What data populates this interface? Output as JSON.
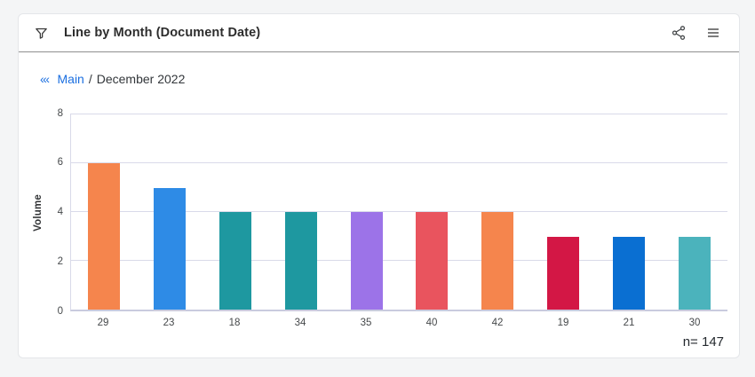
{
  "header": {
    "title": "Line by Month (Document Date)"
  },
  "breadcrumb": {
    "back_glyph": "‹‹‹",
    "root_label": "Main",
    "separator": "/",
    "current_label": "December 2022"
  },
  "footer": {
    "n_label": "n= 147"
  },
  "colors": {
    "link_blue": "#1B6FE0",
    "gridline": "#D9DAE9",
    "axis_line": "#C9CBDE",
    "header_divider": "#8F8F8F",
    "page_background": "#F4F5F6",
    "card_background": "#FFFFFF",
    "tick_text": "#45484A",
    "title_text": "#2D2D2D"
  },
  "chart_data": {
    "type": "bar",
    "title": "Line by Month (Document Date)",
    "categories": [
      "29",
      "23",
      "18",
      "34",
      "35",
      "40",
      "42",
      "19",
      "21",
      "30"
    ],
    "values": [
      6,
      5,
      4,
      4,
      4,
      4,
      4,
      3,
      3,
      3
    ],
    "bar_colors": [
      "#F5854D",
      "#2E8BE6",
      "#1E98A0",
      "#1E98A0",
      "#9C73E8",
      "#E9545E",
      "#F5854D",
      "#D31745",
      "#0A6FD2",
      "#4BB3BC"
    ],
    "xlabel": "",
    "ylabel": "Volume",
    "ylim": [
      0,
      8
    ],
    "yticks": [
      0,
      2,
      4,
      6,
      8
    ],
    "grid": true,
    "legend_position": "none",
    "n": 147
  }
}
